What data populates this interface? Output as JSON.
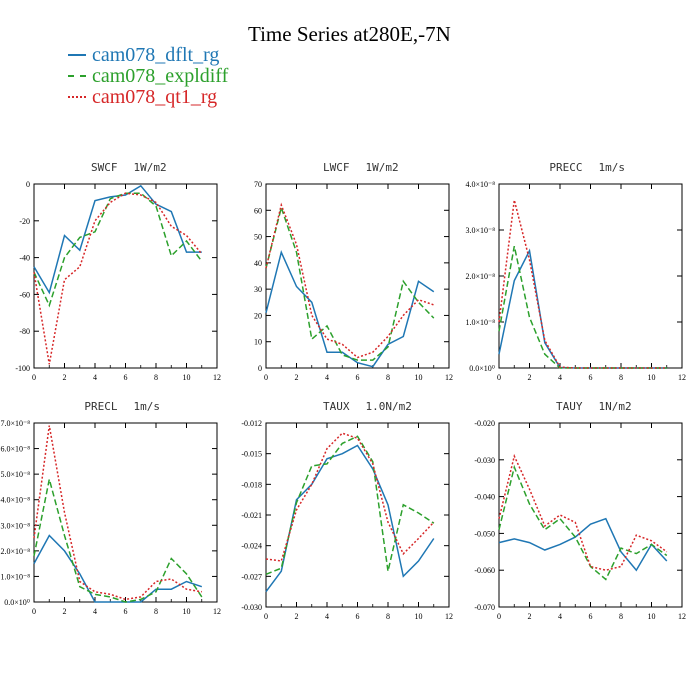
{
  "title": "Time Series at280E,-7N",
  "legend": [
    {
      "label": "cam078_dflt_rg",
      "color": "#1f77b4",
      "dash": "solid"
    },
    {
      "label": "cam078_expldiff",
      "color": "#2ca02c",
      "dash": "dashed"
    },
    {
      "label": "cam078_qt1_rg",
      "color": "#d62728",
      "dash": "dotted"
    }
  ],
  "chart_data": [
    {
      "type": "line",
      "title": "SWCF",
      "units": "1W/m2",
      "x": [
        0,
        1,
        2,
        3,
        4,
        5,
        6,
        7,
        8,
        9,
        10,
        11
      ],
      "xlim": [
        0,
        12
      ],
      "xticks": [
        0,
        2,
        4,
        6,
        8,
        10,
        12
      ],
      "xtick_labels": [
        "0",
        "2",
        "4",
        "6",
        "8",
        "10",
        "12"
      ],
      "ylim": [
        -100,
        0
      ],
      "yticks": [
        -100,
        -80,
        -60,
        -40,
        -20,
        0
      ],
      "ytick_labels": [
        "-100",
        "-80",
        "-60",
        "-40",
        "-20",
        "0"
      ],
      "series": [
        {
          "name": "cam078_dflt_rg",
          "values": [
            -45,
            -59,
            -28,
            -36,
            -9,
            -7,
            -6,
            -1,
            -11,
            -15,
            -37,
            -37
          ]
        },
        {
          "name": "cam078_expldiff",
          "values": [
            -48,
            -66,
            -40,
            -29,
            -26,
            -8,
            -5,
            -5,
            -12,
            -39,
            -31,
            -42
          ]
        },
        {
          "name": "cam078_qt1_rg",
          "values": [
            -48,
            -98,
            -52,
            -45,
            -20,
            -10,
            -5,
            -6,
            -10,
            -23,
            -28,
            -38
          ]
        }
      ]
    },
    {
      "type": "line",
      "title": "LWCF",
      "units": "1W/m2",
      "x": [
        0,
        1,
        2,
        3,
        4,
        5,
        6,
        7,
        8,
        9,
        10,
        11
      ],
      "xlim": [
        0,
        12
      ],
      "xticks": [
        0,
        2,
        4,
        6,
        8,
        10,
        12
      ],
      "xtick_labels": [
        "0",
        "2",
        "4",
        "6",
        "8",
        "10",
        "12"
      ],
      "ylim": [
        0,
        70
      ],
      "yticks": [
        0,
        10,
        20,
        30,
        40,
        50,
        60,
        70
      ],
      "ytick_labels": [
        "0",
        "10",
        "20",
        "30",
        "40",
        "50",
        "60",
        "70"
      ],
      "series": [
        {
          "name": "cam078_dflt_rg",
          "values": [
            21,
            44,
            31,
            25,
            6,
            6,
            2,
            0.5,
            9,
            12,
            33,
            29
          ]
        },
        {
          "name": "cam078_expldiff",
          "values": [
            38,
            61,
            44,
            11,
            16,
            5,
            3,
            3,
            8,
            33,
            25,
            19
          ]
        },
        {
          "name": "cam078_qt1_rg",
          "values": [
            38,
            62,
            47,
            20,
            11,
            9,
            4,
            6,
            12,
            20,
            26,
            24
          ]
        }
      ]
    },
    {
      "type": "line",
      "title": "PRECC",
      "units": "1m/s",
      "x": [
        0,
        1,
        2,
        3,
        4,
        5,
        6,
        7,
        8,
        9,
        10,
        11
      ],
      "xlim": [
        0,
        12
      ],
      "xticks": [
        0,
        2,
        4,
        6,
        8,
        10,
        12
      ],
      "xtick_labels": [
        "0",
        "2",
        "4",
        "6",
        "8",
        "10",
        "12"
      ],
      "ylim": [
        0,
        4e-08
      ],
      "yticks": [
        0,
        1e-08,
        2e-08,
        3e-08,
        4e-08
      ],
      "ytick_labels": [
        "0.0×10⁰",
        "1.0×10⁻⁸",
        "2.0×10⁻⁸",
        "3.0×10⁻⁸",
        "4.0×10⁻⁸"
      ],
      "series": [
        {
          "name": "cam078_dflt_rg",
          "values": [
            3e-09,
            1.9e-08,
            2.55e-08,
            5.5e-09,
            1e-10,
            0,
            0,
            0,
            0,
            0,
            0,
            0
          ]
        },
        {
          "name": "cam078_expldiff",
          "values": [
            8e-09,
            2.65e-08,
            1.1e-08,
            3e-09,
            0,
            0,
            0,
            0,
            0,
            0,
            0,
            0
          ]
        },
        {
          "name": "cam078_qt1_rg",
          "values": [
            1e-08,
            3.65e-08,
            2.35e-08,
            6e-09,
            2e-10,
            0,
            0,
            0,
            0,
            0,
            0,
            0
          ]
        }
      ]
    },
    {
      "type": "line",
      "title": "PRECL",
      "units": "1m/s",
      "x": [
        0,
        1,
        2,
        3,
        4,
        5,
        6,
        7,
        8,
        9,
        10,
        11
      ],
      "xlim": [
        0,
        12
      ],
      "xticks": [
        0,
        2,
        4,
        6,
        8,
        10,
        12
      ],
      "xtick_labels": [
        "0",
        "2",
        "4",
        "6",
        "8",
        "10",
        "12"
      ],
      "ylim": [
        0,
        7e-08
      ],
      "yticks": [
        0,
        1e-08,
        2e-08,
        3e-08,
        4e-08,
        5e-08,
        6e-08,
        7e-08
      ],
      "ytick_labels": [
        "0.0×10⁰",
        "1.0×10⁻⁸",
        "2.0×10⁻⁸",
        "3.0×10⁻⁸",
        "4.0×10⁻⁸",
        "5.0×10⁻⁸",
        "6.0×10⁻⁸",
        "7.0×10⁻⁸"
      ],
      "series": [
        {
          "name": "cam078_dflt_rg",
          "values": [
            1.5e-08,
            2.6e-08,
            2e-08,
            1.1e-08,
            0,
            0,
            0,
            0,
            5e-09,
            5e-09,
            8e-09,
            6e-09
          ]
        },
        {
          "name": "cam078_expldiff",
          "values": [
            1.8e-08,
            4.8e-08,
            2.6e-08,
            6e-09,
            3e-09,
            2e-09,
            0,
            1e-09,
            4e-09,
            1.7e-08,
            1.1e-08,
            2e-09
          ]
        },
        {
          "name": "cam078_qt1_rg",
          "values": [
            2.5e-08,
            6.9e-08,
            3.5e-08,
            8e-09,
            4e-09,
            3e-09,
            1e-09,
            2e-09,
            8e-09,
            9e-09,
            5e-09,
            4e-09
          ]
        }
      ]
    },
    {
      "type": "line",
      "title": "TAUX",
      "units": "1.0N/m2",
      "x": [
        0,
        1,
        2,
        3,
        4,
        5,
        6,
        7,
        8,
        9,
        10,
        11
      ],
      "xlim": [
        0,
        12
      ],
      "xticks": [
        0,
        2,
        4,
        6,
        8,
        10,
        12
      ],
      "xtick_labels": [
        "0",
        "2",
        "4",
        "6",
        "8",
        "10",
        "12"
      ],
      "ylim": [
        -0.03,
        -0.012
      ],
      "yticks": [
        -0.03,
        -0.027,
        -0.024,
        -0.021,
        -0.018,
        -0.015,
        -0.012
      ],
      "ytick_labels": [
        "-0.030",
        "-0.027",
        "-0.024",
        "-0.021",
        "-0.018",
        "-0.015",
        "-0.012"
      ],
      "series": [
        {
          "name": "cam078_dflt_rg",
          "values": [
            -0.0285,
            -0.0265,
            -0.0195,
            -0.018,
            -0.0155,
            -0.015,
            -0.0142,
            -0.0165,
            -0.02,
            -0.027,
            -0.0255,
            -0.0233
          ]
        },
        {
          "name": "cam078_expldiff",
          "values": [
            -0.0268,
            -0.0262,
            -0.0198,
            -0.0162,
            -0.016,
            -0.014,
            -0.0133,
            -0.0158,
            -0.0265,
            -0.02,
            -0.0208,
            -0.0218
          ]
        },
        {
          "name": "cam078_qt1_rg",
          "values": [
            -0.0253,
            -0.0255,
            -0.0205,
            -0.018,
            -0.0145,
            -0.013,
            -0.0135,
            -0.016,
            -0.0217,
            -0.0248,
            -0.0233,
            -0.0217
          ]
        }
      ]
    },
    {
      "type": "line",
      "title": "TAUY",
      "units": "1N/m2",
      "x": [
        0,
        1,
        2,
        3,
        4,
        5,
        6,
        7,
        8,
        9,
        10,
        11
      ],
      "xlim": [
        0,
        12
      ],
      "xticks": [
        0,
        2,
        4,
        6,
        8,
        10,
        12
      ],
      "xtick_labels": [
        "0",
        "2",
        "4",
        "6",
        "8",
        "10",
        "12"
      ],
      "ylim": [
        -0.07,
        -0.02
      ],
      "yticks": [
        -0.07,
        -0.06,
        -0.05,
        -0.04,
        -0.03,
        -0.02
      ],
      "ytick_labels": [
        "-0.070",
        "-0.060",
        "-0.050",
        "-0.040",
        "-0.030",
        "-0.020"
      ],
      "series": [
        {
          "name": "cam078_dflt_rg",
          "values": [
            -0.0525,
            -0.0515,
            -0.0525,
            -0.0545,
            -0.053,
            -0.051,
            -0.0475,
            -0.046,
            -0.055,
            -0.06,
            -0.053,
            -0.0575
          ]
        },
        {
          "name": "cam078_expldiff",
          "values": [
            -0.049,
            -0.032,
            -0.042,
            -0.049,
            -0.046,
            -0.051,
            -0.059,
            -0.0625,
            -0.054,
            -0.0555,
            -0.053,
            -0.056
          ]
        },
        {
          "name": "cam078_qt1_rg",
          "values": [
            -0.046,
            -0.029,
            -0.038,
            -0.048,
            -0.045,
            -0.047,
            -0.059,
            -0.06,
            -0.059,
            -0.0505,
            -0.052,
            -0.055
          ]
        }
      ]
    }
  ]
}
